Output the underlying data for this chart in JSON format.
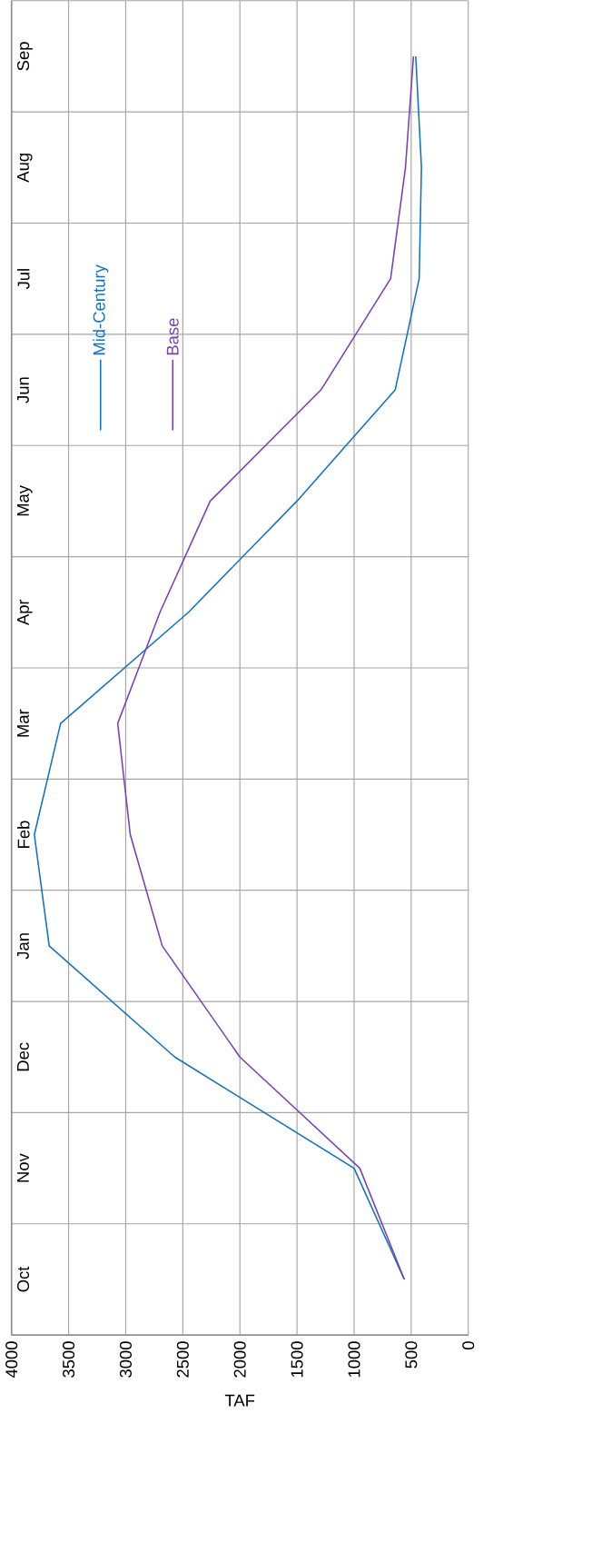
{
  "chart_data": {
    "type": "line",
    "orientation": "horizontal",
    "xlabel": "TAF",
    "categories": [
      "Sep",
      "Aug",
      "Jul",
      "Jun",
      "May",
      "Apr",
      "Mar",
      "Feb",
      "Jan",
      "Dec",
      "Nov",
      "Oct"
    ],
    "series": [
      {
        "name": "Mid-Century",
        "color": "#0f72c2",
        "values": [
          460,
          410,
          430,
          640,
          1500,
          2450,
          3570,
          3800,
          3670,
          2570,
          1000,
          560
        ]
      },
      {
        "name": "Base",
        "color": "#7a3db8",
        "values": [
          480,
          550,
          680,
          1290,
          2260,
          2700,
          3070,
          2960,
          2680,
          2000,
          950,
          560
        ]
      }
    ],
    "xlim": [
      4000,
      0
    ],
    "xticks": [
      4000,
      3500,
      3000,
      2500,
      2000,
      1500,
      1000,
      500,
      0
    ],
    "grid": true,
    "legend": "top left",
    "marker": "none",
    "line_style": "solid"
  }
}
